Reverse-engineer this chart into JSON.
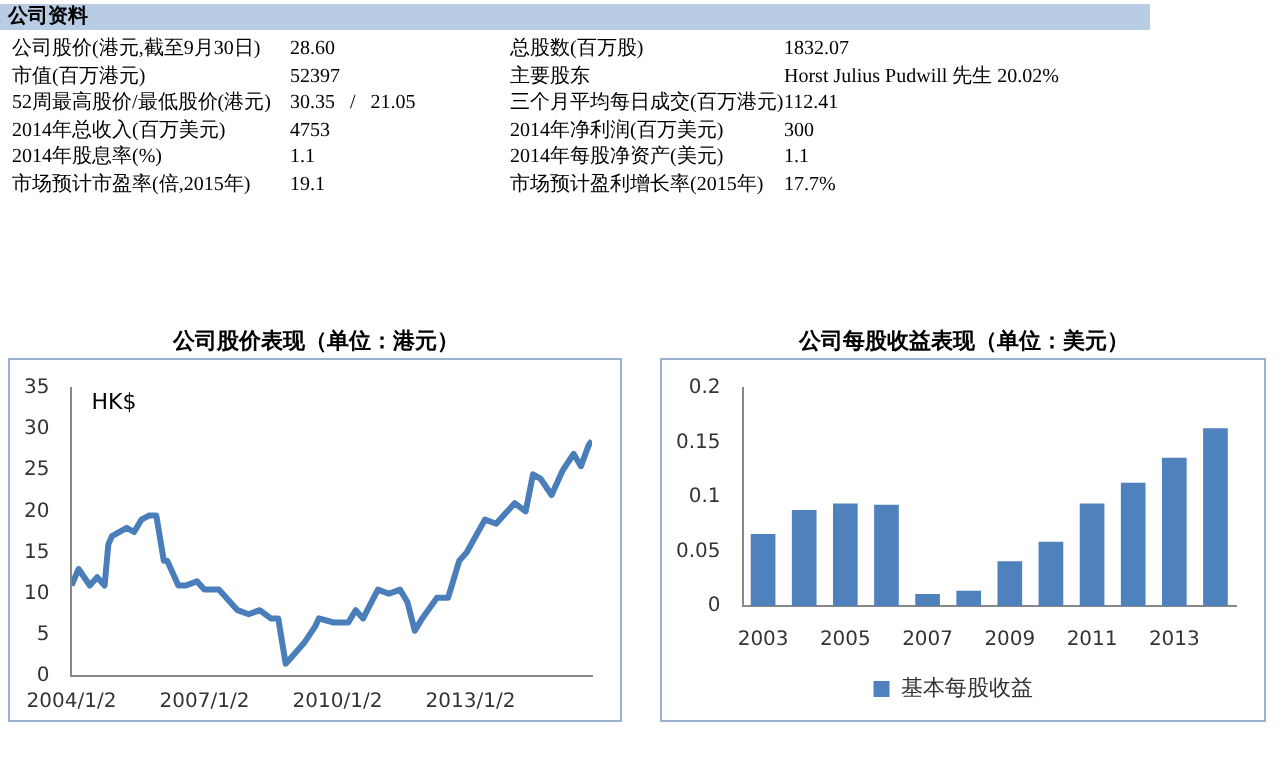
{
  "chart_data": [
    {
      "type": "other",
      "title": "公司资料",
      "annotations": [
        "公司股价(港元,截至9月30日)",
        "28.60",
        "总股数(百万股)",
        "1832.07",
        "市值(百万港元)",
        "52397",
        "主要股东",
        "Horst Julius Pudwill 先生 20.02%",
        "52周最高股价/最低股价(港元)",
        "30.35   /   21.05",
        "三个月平均每日成交(百万港元)",
        "112.41",
        "2014年总收入(百万美元)",
        "4753",
        "2014年净利润(百万美元)",
        "300",
        "2014年股息率(%)",
        "1.1",
        "2014年每股净资产(美元)",
        "1.1",
        "市场预计市盈率(倍,2015年)",
        "19.1",
        "市场预计盈利增长率(2015年)",
        "17.7%"
      ]
    },
    {
      "type": "line",
      "title": "公司股价表现（单位：港元）",
      "ylabel": "HK$",
      "color": "#4a7ebb",
      "grid": false,
      "legend": false,
      "marker": "none",
      "x": [
        "2004-01-02",
        "2004-03",
        "2004-06",
        "2004-08",
        "2004-10",
        "2004-11",
        "2004-12",
        "2005-04",
        "2005-06",
        "2005-08",
        "2005-10",
        "2005-12",
        "2006-02",
        "2006-03",
        "2006-06",
        "2006-08",
        "2006-11",
        "2007-01",
        "2007-05",
        "2007-08",
        "2007-10",
        "2008-01",
        "2008-04",
        "2008-07",
        "2008-09",
        "2008-11",
        "2009-01",
        "2009-04",
        "2009-07",
        "2009-08",
        "2009-12",
        "2010-04",
        "2010-06",
        "2010-08",
        "2010-12",
        "2011-03",
        "2011-06",
        "2011-08",
        "2011-10",
        "2011-12",
        "2012-04",
        "2012-07",
        "2012-10",
        "2012-12",
        "2013-05",
        "2013-08",
        "2013-10",
        "2014-01",
        "2014-04",
        "2014-06",
        "2014-08",
        "2014-11",
        "2015-02",
        "2015-05",
        "2015-07",
        "2015-09",
        "2015-09-30"
      ],
      "values": [
        11,
        13,
        11,
        12,
        11,
        16,
        17,
        18,
        17.5,
        19,
        19.5,
        19.5,
        14,
        14,
        11,
        11,
        11.5,
        10.5,
        10.5,
        9,
        8,
        7.5,
        8,
        7,
        7,
        1.5,
        2.5,
        4,
        6,
        7,
        6.5,
        6.5,
        8,
        7,
        10.5,
        10,
        10.5,
        9,
        5.5,
        7,
        9.5,
        9.5,
        14,
        15,
        19,
        18.5,
        19.5,
        21,
        20,
        24.5,
        24,
        22,
        25,
        27,
        25.5,
        28,
        28.6
      ],
      "xlim": [
        "2004-01-02",
        "2015-09-30"
      ],
      "xticks": [
        {
          "value": "2004-01-02",
          "label": "2004/1/2"
        },
        {
          "value": "2007-01-02",
          "label": "2007/1/2"
        },
        {
          "value": "2010-01-02",
          "label": "2010/1/2"
        },
        {
          "value": "2013-01-02",
          "label": "2013/1/2"
        }
      ],
      "ylim": [
        0,
        35
      ],
      "yticks": [
        0,
        5,
        10,
        15,
        20,
        25,
        30,
        35
      ]
    },
    {
      "type": "bar",
      "title": "公司每股收益表现（单位：美元）",
      "grid": false,
      "legend": "bottom",
      "categories": [
        "2003",
        null,
        "2005",
        null,
        "2007",
        null,
        "2009",
        null,
        "2011",
        null,
        "2013",
        null
      ],
      "series": [
        {
          "name": "基本每股收益",
          "color": "#4f81bd",
          "values": [
            0.066,
            0.088,
            0.094,
            0.093,
            0.011,
            0.014,
            0.041,
            0.059,
            0.094,
            0.113,
            0.136,
            0.163
          ]
        }
      ],
      "ylim": [
        0,
        0.2
      ],
      "yticks": [
        0,
        0.05,
        0.1,
        0.15,
        0.2
      ]
    }
  ]
}
